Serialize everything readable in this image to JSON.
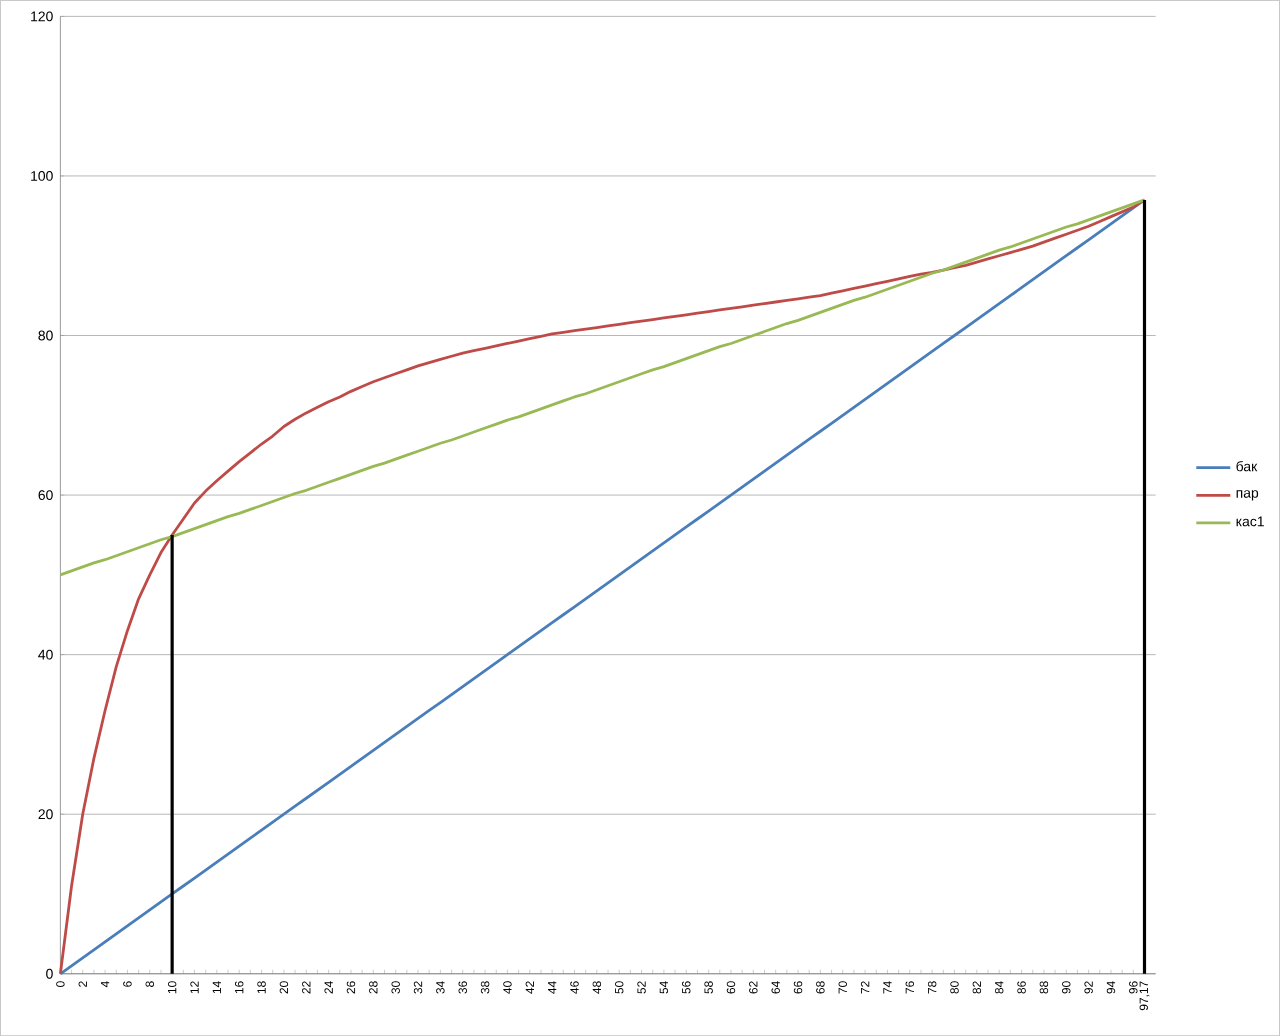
{
  "chart_data": {
    "type": "line",
    "categories": [
      "0",
      null,
      "2",
      null,
      "4",
      null,
      "6",
      null,
      "8",
      null,
      "10",
      null,
      "12",
      null,
      "14",
      null,
      "16",
      null,
      "18",
      null,
      "20",
      null,
      "22",
      null,
      "24",
      null,
      "26",
      null,
      "28",
      null,
      "30",
      null,
      "32",
      null,
      "34",
      null,
      "36",
      null,
      "38",
      null,
      "40",
      null,
      "42",
      null,
      "44",
      null,
      "46",
      null,
      "48",
      null,
      "50",
      null,
      "52",
      null,
      "54",
      null,
      "56",
      null,
      "58",
      null,
      "60",
      null,
      "62",
      null,
      "64",
      null,
      "66",
      null,
      "68",
      null,
      "70",
      null,
      "72",
      null,
      "74",
      null,
      "76",
      null,
      "78",
      null,
      "80",
      null,
      "82",
      null,
      "84",
      null,
      "86",
      null,
      "88",
      null,
      "90",
      null,
      "92",
      null,
      "94",
      null,
      "96",
      "97,17"
    ],
    "series": [
      {
        "name": "бак",
        "color": "#4a7ebb",
        "values": [
          0,
          1,
          2,
          3,
          4,
          5,
          6,
          7,
          8,
          9,
          10,
          11,
          12,
          13,
          14,
          15,
          16,
          17,
          18,
          19,
          20,
          21,
          22,
          23,
          24,
          25,
          26,
          27,
          28,
          29,
          30,
          31,
          32,
          33,
          34,
          35,
          36,
          37,
          38,
          39,
          40,
          41,
          42,
          43,
          44,
          45,
          46,
          47,
          48,
          49,
          50,
          51,
          52,
          53,
          54,
          55,
          56,
          57,
          58,
          59,
          60,
          61,
          62,
          63,
          64,
          65,
          66,
          67,
          68,
          69,
          70,
          71,
          72,
          73,
          74,
          75,
          76,
          77,
          78,
          79,
          80,
          81,
          82,
          83,
          84,
          85,
          86,
          87,
          88,
          89,
          90,
          91,
          92,
          93,
          94,
          95,
          96,
          97
        ]
      },
      {
        "name": "пар",
        "color": "#be4b48",
        "values": [
          0,
          11,
          20,
          27,
          33,
          38.5,
          43,
          47,
          50,
          52.8,
          55,
          57,
          59,
          60.5,
          61.8,
          63,
          64.2,
          65.3,
          66.4,
          67.4,
          68.6,
          69.5,
          70.3,
          71,
          71.7,
          72.3,
          73,
          73.6,
          74.2,
          74.7,
          75.2,
          75.7,
          76.2,
          76.6,
          77,
          77.4,
          77.8,
          78.1,
          78.4,
          78.7,
          79,
          79.3,
          79.6,
          79.9,
          80.2,
          80.4,
          80.6,
          80.8,
          81,
          81.2,
          81.4,
          81.6,
          81.8,
          82,
          82.2,
          82.4,
          82.6,
          82.8,
          83,
          83.2,
          83.4,
          83.6,
          83.8,
          84,
          84.2,
          84.4,
          84.6,
          84.8,
          85,
          85.3,
          85.6,
          85.9,
          86.2,
          86.5,
          86.8,
          87.1,
          87.4,
          87.7,
          87.9,
          88.2,
          88.5,
          88.8,
          89.2,
          89.6,
          90,
          90.4,
          90.8,
          91.2,
          91.7,
          92.2,
          92.7,
          93.2,
          93.7,
          94.3,
          94.9,
          95.5,
          96.1,
          97
        ]
      },
      {
        "name": "кас1",
        "color": "#98b954",
        "values": [
          50,
          50.5,
          51,
          51.5,
          51.9,
          52.4,
          52.9,
          53.4,
          53.9,
          54.4,
          54.8,
          55.3,
          55.8,
          56.3,
          56.8,
          57.3,
          57.7,
          58.2,
          58.7,
          59.2,
          59.7,
          60.2,
          60.6,
          61.1,
          61.6,
          62.1,
          62.6,
          63.1,
          63.6,
          64,
          64.5,
          65,
          65.5,
          66,
          66.5,
          66.9,
          67.4,
          67.9,
          68.4,
          68.9,
          69.4,
          69.8,
          70.3,
          70.8,
          71.3,
          71.8,
          72.3,
          72.7,
          73.2,
          73.7,
          74.2,
          74.7,
          75.2,
          75.7,
          76.1,
          76.6,
          77.1,
          77.6,
          78.1,
          78.6,
          79,
          79.5,
          80,
          80.5,
          81,
          81.5,
          81.9,
          82.4,
          82.9,
          83.4,
          83.9,
          84.4,
          84.8,
          85.3,
          85.8,
          86.3,
          86.8,
          87.3,
          87.8,
          88.2,
          88.7,
          89.2,
          89.7,
          90.2,
          90.7,
          91.1,
          91.6,
          92.1,
          92.6,
          93.1,
          93.6,
          94,
          94.5,
          95,
          95.5,
          96,
          96.5,
          97
        ]
      },
      {
        "color": "#000000",
        "x": [
          "10",
          "10"
        ],
        "values": [
          0,
          55
        ]
      },
      {
        "color": "#000000",
        "x": [
          "97,17",
          "97,17"
        ],
        "values": [
          0,
          97
        ]
      }
    ],
    "ylim": [
      0,
      120
    ],
    "yticks": [
      0,
      20,
      40,
      60,
      80,
      100,
      120
    ],
    "grid": "y",
    "legend": "right",
    "marker": "none",
    "line_style": "solid"
  }
}
